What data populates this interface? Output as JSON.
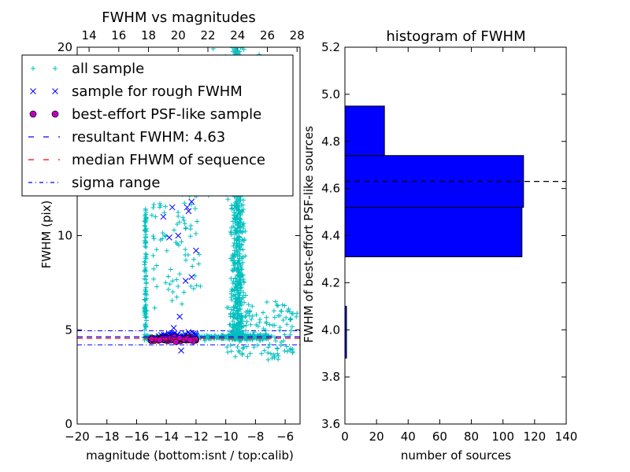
{
  "chart_data": [
    {
      "type": "scatter",
      "title": "FWHM vs magnitudes",
      "xlabel": "magnitude (bottom:isnt / top:calib)",
      "ylabel": "FWHM (pix)",
      "xlim": [
        -20,
        -5
      ],
      "ylim": [
        0,
        20
      ],
      "xticks": [
        -20,
        -18,
        -16,
        -14,
        -12,
        -10,
        -8,
        -6
      ],
      "xtick_labels": [
        "−20",
        "−18",
        "−16",
        "−14",
        "−12",
        "−10",
        "−8",
        "−6"
      ],
      "yticks": [
        0,
        5,
        10,
        20
      ],
      "ytick_labels": [
        "0",
        "5",
        "10",
        "20"
      ],
      "top_axis": {
        "range": [
          13.2,
          28.2
        ],
        "ticks": [
          14,
          16,
          18,
          20,
          22,
          24,
          26,
          28
        ],
        "tick_labels": [
          "14",
          "16",
          "18",
          "20",
          "22",
          "24",
          "26",
          "28"
        ]
      },
      "grid": false,
      "legend_position": "top-left",
      "series": [
        {
          "name": "all sample",
          "marker": "plus",
          "color": "#00bfbf"
        },
        {
          "name": "sample for rough FWHM",
          "marker": "x",
          "color": "#0000ff"
        },
        {
          "name": "best-effort PSF-like sample",
          "marker": "circle",
          "color": "#bf00bf"
        }
      ],
      "lines": [
        {
          "name": "resultant FWHM: 4.63",
          "y": 4.63,
          "style": "dashed",
          "color": "#0000ff"
        },
        {
          "name": "median FHWM of sequence",
          "y": 4.55,
          "style": "dashed",
          "color": "#ff0000"
        },
        {
          "name": "sigma range",
          "y": [
            4.2,
            4.95
          ],
          "style": "dashdot",
          "color": "#0000ff"
        }
      ],
      "legend_entries": [
        {
          "label": "all sample",
          "marker": "plus",
          "color": "#00bfbf"
        },
        {
          "label": "sample for rough FWHM",
          "marker": "x",
          "color": "#0000ff"
        },
        {
          "label": "best-effort PSF-like sample",
          "marker": "circle",
          "color": "#bf00bf"
        },
        {
          "label": "resultant FWHM: 4.63",
          "marker": "dash",
          "color": "#0000ff"
        },
        {
          "label": "median FHWM of sequence",
          "marker": "dash",
          "color": "#ff0000"
        },
        {
          "label": "sigma range",
          "marker": "dashdot",
          "color": "#0000ff"
        }
      ]
    },
    {
      "type": "bar",
      "orientation": "horizontal",
      "title": "histogram of FWHM",
      "xlabel": "number of sources",
      "ylabel": "FWHM of best-effort PSF-like sources",
      "xlim": [
        0,
        140
      ],
      "ylim": [
        3.6,
        5.2
      ],
      "xticks": [
        0,
        20,
        40,
        60,
        80,
        100,
        120,
        140
      ],
      "yticks": [
        3.6,
        3.8,
        4.0,
        4.2,
        4.4,
        4.6,
        4.8,
        5.0,
        5.2
      ],
      "ytick_labels": [
        "3.6",
        "3.8",
        "4.0",
        "4.2",
        "4.4",
        "4.6",
        "4.8",
        "5.0",
        "5.2"
      ],
      "bins": [
        {
          "y0": 3.88,
          "y1": 4.1,
          "count": 1
        },
        {
          "y0": 4.31,
          "y1": 4.52,
          "count": 112
        },
        {
          "y0": 4.52,
          "y1": 4.74,
          "count": 113
        },
        {
          "y0": 4.74,
          "y1": 4.95,
          "count": 25
        }
      ],
      "bar_color": "#0000ff",
      "reference_line": {
        "y": 4.63,
        "style": "dashed",
        "color": "#000000"
      }
    }
  ]
}
